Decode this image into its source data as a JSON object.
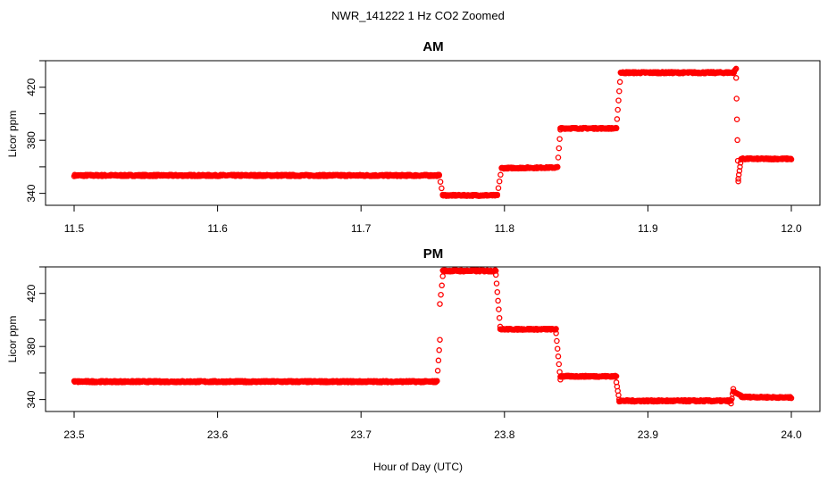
{
  "chart_data": {
    "type": "scatter",
    "title": "NWR_141222  1 Hz CO2 Zoomed",
    "xlabel": "Hour of Day (UTC)",
    "point_color": "#ff0000",
    "panels": [
      {
        "title": "AM",
        "ylabel": "Licor ppm",
        "xlim": [
          11.5,
          12.0
        ],
        "ylim": [
          331,
          440
        ],
        "xticks": [
          11.5,
          11.6,
          11.7,
          11.8,
          11.9,
          12.0
        ],
        "xtick_labels": [
          "11.5",
          "11.6",
          "11.7",
          "11.8",
          "11.9",
          "12.0"
        ],
        "yticks": [
          340,
          360,
          380,
          400,
          420,
          440
        ],
        "ytick_labels": [
          "340",
          "",
          "380",
          "",
          "420",
          ""
        ],
        "segments": [
          {
            "x0": 11.5,
            "x1": 11.7545,
            "y0": 353.5,
            "y1": 353.5,
            "step": 0.0004,
            "jitter": 0.6
          },
          {
            "x0": 11.7545,
            "x1": 11.757,
            "y0": 353.5,
            "y1": 339,
            "step": 0.0008,
            "jitter": 0
          },
          {
            "x0": 11.757,
            "x1": 11.795,
            "y0": 338.5,
            "y1": 338.5,
            "step": 0.0004,
            "jitter": 0.5
          },
          {
            "x0": 11.795,
            "x1": 11.798,
            "y0": 339,
            "y1": 359,
            "step": 0.0008,
            "jitter": 0
          },
          {
            "x0": 11.798,
            "x1": 11.837,
            "y0": 359,
            "y1": 359.5,
            "step": 0.0004,
            "jitter": 0.5
          },
          {
            "x0": 11.837,
            "x1": 11.839,
            "y0": 360,
            "y1": 388,
            "step": 0.0005,
            "jitter": 0
          },
          {
            "x0": 11.839,
            "x1": 11.878,
            "y0": 389,
            "y1": 389,
            "step": 0.0004,
            "jitter": 0.5
          },
          {
            "x0": 11.878,
            "x1": 11.881,
            "y0": 389,
            "y1": 431,
            "step": 0.0005,
            "jitter": 0
          },
          {
            "x0": 11.881,
            "x1": 11.96,
            "y0": 431,
            "y1": 431,
            "step": 0.0004,
            "jitter": 0.6
          },
          {
            "x0": 11.96,
            "x1": 11.9615,
            "y0": 432,
            "y1": 434,
            "step": 0.0005,
            "jitter": 0
          },
          {
            "x0": 11.9615,
            "x1": 11.963,
            "y0": 427,
            "y1": 349,
            "step": 0.0003,
            "jitter": 0
          },
          {
            "x0": 11.963,
            "x1": 11.965,
            "y0": 351,
            "y1": 366,
            "step": 0.0004,
            "jitter": 0
          },
          {
            "x0": 11.965,
            "x1": 12.0,
            "y0": 366,
            "y1": 366,
            "step": 0.0004,
            "jitter": 0.5
          }
        ]
      },
      {
        "title": "PM",
        "ylabel": "Licor ppm",
        "xlim": [
          23.5,
          24.0
        ],
        "ylim": [
          331,
          440
        ],
        "xticks": [
          23.5,
          23.6,
          23.7,
          23.8,
          23.9,
          24.0
        ],
        "xtick_labels": [
          "23.5",
          "23.6",
          "23.7",
          "23.8",
          "23.9",
          "24.0"
        ],
        "yticks": [
          340,
          360,
          380,
          400,
          420,
          440
        ],
        "ytick_labels": [
          "340",
          "",
          "380",
          "",
          "420",
          ""
        ],
        "segments": [
          {
            "x0": 23.5,
            "x1": 23.753,
            "y0": 353.5,
            "y1": 353.5,
            "step": 0.0004,
            "jitter": 0.6
          },
          {
            "x0": 23.753,
            "x1": 23.755,
            "y0": 354,
            "y1": 385,
            "step": 0.0005,
            "jitter": 0
          },
          {
            "x0": 23.755,
            "x1": 23.757,
            "y0": 412,
            "y1": 433,
            "step": 0.0006,
            "jitter": 0
          },
          {
            "x0": 23.757,
            "x1": 23.794,
            "y0": 437,
            "y1": 437,
            "step": 0.0004,
            "jitter": 0.6
          },
          {
            "x0": 23.794,
            "x1": 23.797,
            "y0": 434,
            "y1": 395,
            "step": 0.0005,
            "jitter": 0
          },
          {
            "x0": 23.797,
            "x1": 23.836,
            "y0": 393,
            "y1": 393,
            "step": 0.0004,
            "jitter": 0.5
          },
          {
            "x0": 23.836,
            "x1": 23.839,
            "y0": 390,
            "y1": 355,
            "step": 0.0005,
            "jitter": 0
          },
          {
            "x0": 23.839,
            "x1": 23.878,
            "y0": 357.5,
            "y1": 357.5,
            "step": 0.0004,
            "jitter": 0.5
          },
          {
            "x0": 23.878,
            "x1": 23.88,
            "y0": 353,
            "y1": 340,
            "step": 0.0005,
            "jitter": 0
          },
          {
            "x0": 23.88,
            "x1": 23.958,
            "y0": 339,
            "y1": 339,
            "step": 0.0004,
            "jitter": 0.6
          },
          {
            "x0": 23.958,
            "x1": 23.9595,
            "y0": 337,
            "y1": 348,
            "step": 0.0005,
            "jitter": 0
          },
          {
            "x0": 23.9595,
            "x1": 23.965,
            "y0": 346,
            "y1": 343,
            "step": 0.0004,
            "jitter": 0
          },
          {
            "x0": 23.965,
            "x1": 24.0,
            "y0": 342,
            "y1": 341.5,
            "step": 0.0004,
            "jitter": 0.5
          }
        ]
      }
    ]
  }
}
